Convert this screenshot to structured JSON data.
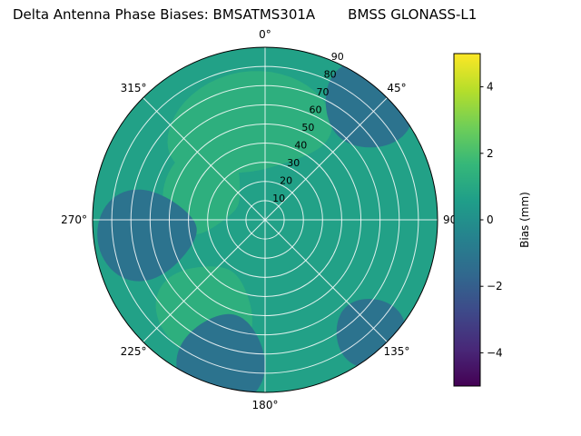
{
  "title": {
    "left": "Delta Antenna Phase Biases: BMSATMS301A",
    "right": "BMSS GLONASS-L1"
  },
  "colors": {
    "background": "#ffffff",
    "grid": "#ffffff",
    "axis_edge": "#000000",
    "text": "#000000"
  },
  "chart_data": {
    "type": "heatmap",
    "projection": "polar",
    "title": "Delta Antenna Phase Biases: BMSATMS301A     BMSS GLONASS-L1",
    "theta_ticks": [
      {
        "deg": 0,
        "label": "0°"
      },
      {
        "deg": 45,
        "label": "45°"
      },
      {
        "deg": 90,
        "label": "90"
      },
      {
        "deg": 135,
        "label": "135°"
      },
      {
        "deg": 180,
        "label": "180°"
      },
      {
        "deg": 225,
        "label": "225°"
      },
      {
        "deg": 270,
        "label": "270°"
      },
      {
        "deg": 315,
        "label": "315°"
      }
    ],
    "r_max": 90,
    "r_label_angle_deg": 22.5,
    "r_ticks": [
      {
        "value": 10,
        "label": "10"
      },
      {
        "value": 20,
        "label": "20"
      },
      {
        "value": 30,
        "label": "30"
      },
      {
        "value": 40,
        "label": "40"
      },
      {
        "value": 50,
        "label": "50"
      },
      {
        "value": 60,
        "label": "60"
      },
      {
        "value": 70,
        "label": "70"
      },
      {
        "value": 80,
        "label": "80"
      },
      {
        "value": 90,
        "label": "90"
      }
    ],
    "background_value_mm": 0.7,
    "regions": [
      {
        "name": "high-top",
        "theta_deg": 350,
        "r": 52,
        "theta_halfwidth": 48,
        "r_halfwidth": 26,
        "value_mm": 1.3
      },
      {
        "name": "high-left-inner",
        "theta_deg": 296,
        "r": 36,
        "theta_halfwidth": 38,
        "r_halfwidth": 20,
        "value_mm": 1.3
      },
      {
        "name": "high-bottom-left",
        "theta_deg": 213,
        "r": 56,
        "theta_halfwidth": 26,
        "r_halfwidth": 24,
        "value_mm": 1.3
      },
      {
        "name": "low-left",
        "theta_deg": 263,
        "r": 62,
        "theta_halfwidth": 21,
        "r_halfwidth": 26,
        "value_mm": -1.2
      },
      {
        "name": "low-bottom",
        "theta_deg": 197,
        "r": 76,
        "theta_halfwidth": 17,
        "r_halfwidth": 24,
        "value_mm": -1.2
      },
      {
        "name": "low-upper-right",
        "theta_deg": 42,
        "r": 80,
        "theta_halfwidth": 17,
        "r_halfwidth": 22,
        "value_mm": -1.2
      },
      {
        "name": "low-lower-right",
        "theta_deg": 137,
        "r": 80,
        "theta_halfwidth": 13,
        "r_halfwidth": 18,
        "value_mm": -1.2
      }
    ],
    "colorbar": {
      "label": "Bias (mm)",
      "min": -5,
      "max": 5,
      "colormap": "viridis",
      "ticks": [
        {
          "value": 4,
          "label": "4"
        },
        {
          "value": 2,
          "label": "2"
        },
        {
          "value": 0,
          "label": "0"
        },
        {
          "value": -2,
          "label": "−2"
        },
        {
          "value": -4,
          "label": "−4"
        }
      ]
    },
    "viridis_stops": [
      "#440154",
      "#482878",
      "#3e4989",
      "#31688e",
      "#26828e",
      "#1f9e89",
      "#35b779",
      "#6ece58",
      "#b5de2b",
      "#fde725"
    ]
  }
}
